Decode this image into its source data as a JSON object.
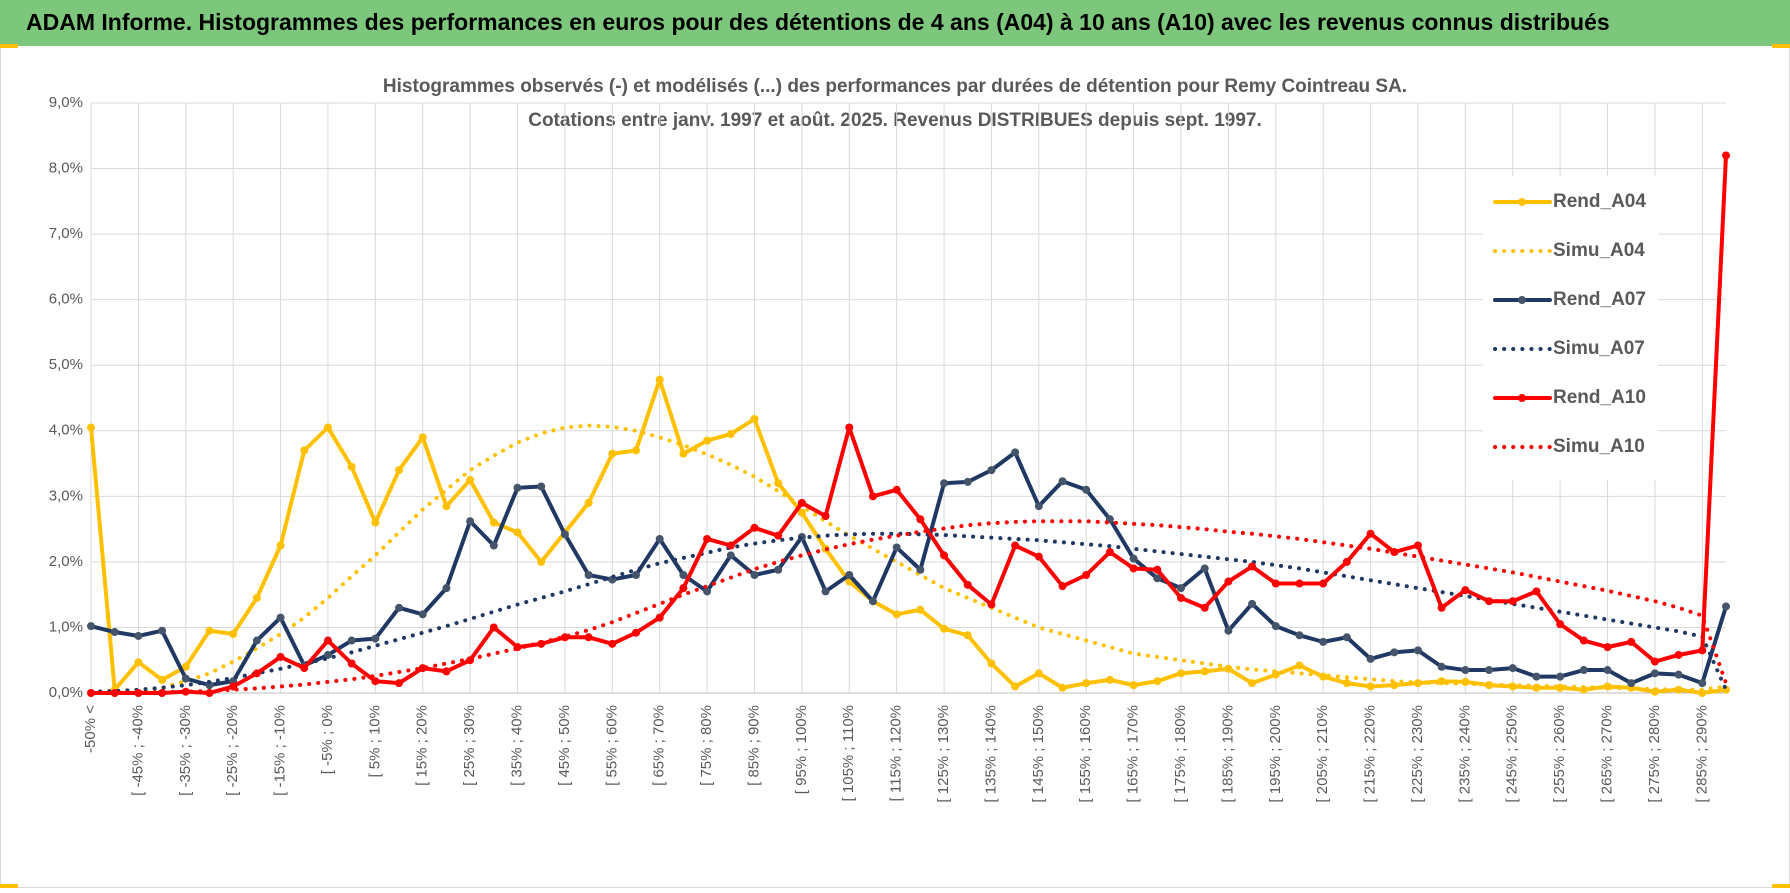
{
  "header": {
    "title": "ADAM Informe. Histogrammes des performances en euros pour des détentions de 4 ans (A04) à 10 ans (A10) avec les revenus connus distribués"
  },
  "chart_data": {
    "type": "line",
    "title": "Histogrammes observés (-) et modélisés (...) des performances par durées de détention pour Remy Cointreau SA.",
    "subtitle": "Cotations entre janv. 1997 et août. 2025. Revenus DISTRIBUES depuis sept. 1997.",
    "categories": [
      "-50% <",
      null,
      "[ -45% ; -40%",
      null,
      "[ -35% ; -30%",
      null,
      "[ -25% ; -20%",
      null,
      "[ -15% ; -10%",
      null,
      "[ -5% ; 0%",
      null,
      "[ 5% ; 10%",
      null,
      "[ 15% ; 20%",
      null,
      "[ 25% ; 30%",
      null,
      "[ 35% ; 40%",
      null,
      "[ 45% ; 50%",
      null,
      "[ 55% ; 60%",
      null,
      "[ 65% ; 70%",
      null,
      "[ 75% ; 80%",
      null,
      "[ 85% ; 90%",
      null,
      "[ 95% ; 100%",
      null,
      "[ 105% ; 110%",
      null,
      "[ 115% ; 120%",
      null,
      "[ 125% ; 130%",
      null,
      "[ 135% ; 140%",
      null,
      "[ 145% ; 150%",
      null,
      "[ 155% ; 160%",
      null,
      "[ 165% ; 170%",
      null,
      "[ 175% ; 180%",
      null,
      "[ 185% ; 190%",
      null,
      "[ 195% ; 200%",
      null,
      "[ 205% ; 210%",
      null,
      "[ 215% ; 220%",
      null,
      "[ 225% ; 230%",
      null,
      "[ 235% ; 240%",
      null,
      "[ 245% ; 250%",
      null,
      "[ 255% ; 260%",
      null,
      "[ 265% ; 270%",
      null,
      "[ 275% ; 280%",
      null,
      "[ 285% ; 290%",
      null
    ],
    "series": [
      {
        "name": "Rend_A04",
        "color": "#ffc000",
        "style": "solid",
        "markers": true,
        "values": [
          4.05,
          0.05,
          0.47,
          0.2,
          0.4,
          0.95,
          0.9,
          1.45,
          2.25,
          3.7,
          4.05,
          3.45,
          2.6,
          3.4,
          3.9,
          2.85,
          3.25,
          2.6,
          2.45,
          2.0,
          2.45,
          2.9,
          3.65,
          3.7,
          4.78,
          3.65,
          3.85,
          3.95,
          4.18,
          3.2,
          2.75,
          2.2,
          1.7,
          1.4,
          1.2,
          1.27,
          0.98,
          0.88,
          0.45,
          0.1,
          0.3,
          0.08,
          0.15,
          0.2,
          0.12,
          0.18,
          0.3,
          0.33,
          0.37,
          0.15,
          0.28,
          0.42,
          0.25,
          0.15,
          0.1,
          0.12,
          0.15,
          0.18,
          0.17,
          0.12,
          0.1,
          0.08,
          0.08,
          0.05,
          0.1,
          0.08,
          0.02,
          0.05,
          0.0,
          0.05
        ]
      },
      {
        "name": "Simu_A04",
        "color": "#ffc000",
        "style": "dotted",
        "markers": false,
        "values": [
          0,
          0,
          0.02,
          0.08,
          0.18,
          0.3,
          0.48,
          0.68,
          0.9,
          1.15,
          1.45,
          1.78,
          2.1,
          2.45,
          2.8,
          3.1,
          3.4,
          3.62,
          3.82,
          3.96,
          4.05,
          4.08,
          4.06,
          4.0,
          3.9,
          3.78,
          3.64,
          3.48,
          3.3,
          3.08,
          2.85,
          2.62,
          2.4,
          2.2,
          2.0,
          1.8,
          1.6,
          1.45,
          1.3,
          1.15,
          1.0,
          0.9,
          0.8,
          0.7,
          0.6,
          0.55,
          0.5,
          0.45,
          0.4,
          0.36,
          0.33,
          0.3,
          0.27,
          0.24,
          0.21,
          0.18,
          0.16,
          0.15,
          0.14,
          0.13,
          0.12,
          0.11,
          0.1,
          0.09,
          0.08,
          0.07,
          0.06,
          0.05,
          0.05,
          0.1
        ]
      },
      {
        "name": "Rend_A07",
        "color": "#1f3864",
        "style": "solid",
        "markers": true,
        "values": [
          1.02,
          0.93,
          0.87,
          0.95,
          0.22,
          0.12,
          0.18,
          0.8,
          1.15,
          0.42,
          0.58,
          0.8,
          0.83,
          1.3,
          1.2,
          1.6,
          2.62,
          2.25,
          3.13,
          3.15,
          2.42,
          1.8,
          1.73,
          1.8,
          2.35,
          1.8,
          1.55,
          2.1,
          1.8,
          1.88,
          2.38,
          1.55,
          1.8,
          1.4,
          2.22,
          1.88,
          3.2,
          3.22,
          3.4,
          3.67,
          2.85,
          3.23,
          3.1,
          2.65,
          2.05,
          1.75,
          1.6,
          1.9,
          0.95,
          1.36,
          1.02,
          0.88,
          0.78,
          0.85,
          0.52,
          0.62,
          0.65,
          0.4,
          0.35,
          0.35,
          0.38,
          0.25,
          0.25,
          0.35,
          0.35,
          0.15,
          0.3,
          0.28,
          0.15,
          1.32
        ]
      },
      {
        "name": "Simu_A07",
        "color": "#1f3864",
        "style": "dotted",
        "markers": false,
        "values": [
          0.02,
          0.03,
          0.05,
          0.08,
          0.12,
          0.17,
          0.23,
          0.3,
          0.37,
          0.45,
          0.53,
          0.62,
          0.72,
          0.82,
          0.92,
          1.02,
          1.13,
          1.24,
          1.35,
          1.45,
          1.55,
          1.66,
          1.77,
          1.88,
          1.98,
          2.06,
          2.14,
          2.22,
          2.28,
          2.33,
          2.37,
          2.4,
          2.42,
          2.43,
          2.43,
          2.42,
          2.41,
          2.39,
          2.37,
          2.35,
          2.33,
          2.3,
          2.27,
          2.24,
          2.2,
          2.16,
          2.12,
          2.08,
          2.04,
          2.0,
          1.95,
          1.9,
          1.84,
          1.78,
          1.72,
          1.66,
          1.6,
          1.54,
          1.48,
          1.42,
          1.36,
          1.3,
          1.24,
          1.18,
          1.12,
          1.06,
          1.0,
          0.94,
          0.86,
          0.05
        ]
      },
      {
        "name": "Rend_A10",
        "color": "#ff0000",
        "style": "solid",
        "markers": true,
        "values": [
          0.0,
          0.0,
          0.0,
          0.0,
          0.02,
          0.0,
          0.1,
          0.3,
          0.55,
          0.38,
          0.8,
          0.45,
          0.18,
          0.15,
          0.38,
          0.33,
          0.5,
          1.0,
          0.7,
          0.75,
          0.85,
          0.85,
          0.75,
          0.92,
          1.15,
          1.6,
          2.35,
          2.25,
          2.52,
          2.4,
          2.9,
          2.7,
          4.05,
          3.0,
          3.1,
          2.65,
          2.1,
          1.65,
          1.35,
          2.25,
          2.08,
          1.63,
          1.8,
          2.15,
          1.9,
          1.88,
          1.45,
          1.3,
          1.7,
          1.93,
          1.67,
          1.67,
          1.67,
          2.0,
          2.43,
          2.15,
          2.25,
          1.3,
          1.57,
          1.4,
          1.4,
          1.55,
          1.05,
          0.8,
          0.7,
          0.78,
          0.48,
          0.58,
          0.65,
          8.2
        ]
      },
      {
        "name": "Simu_A10",
        "color": "#ff0000",
        "style": "dotted",
        "markers": false,
        "values": [
          0,
          0,
          0.01,
          0.01,
          0.02,
          0.03,
          0.05,
          0.07,
          0.1,
          0.13,
          0.17,
          0.21,
          0.26,
          0.32,
          0.38,
          0.45,
          0.52,
          0.6,
          0.68,
          0.77,
          0.86,
          0.96,
          1.08,
          1.22,
          1.36,
          1.5,
          1.63,
          1.76,
          1.89,
          2.0,
          2.1,
          2.19,
          2.27,
          2.34,
          2.4,
          2.46,
          2.51,
          2.56,
          2.59,
          2.61,
          2.62,
          2.62,
          2.62,
          2.6,
          2.58,
          2.56,
          2.53,
          2.5,
          2.46,
          2.43,
          2.39,
          2.35,
          2.3,
          2.25,
          2.2,
          2.14,
          2.08,
          2.02,
          1.96,
          1.9,
          1.84,
          1.77,
          1.7,
          1.63,
          1.56,
          1.48,
          1.4,
          1.3,
          1.18,
          0.15
        ]
      }
    ],
    "ylim": [
      0,
      9
    ],
    "yticks": [
      {
        "value": 0,
        "label": "0,0%"
      },
      {
        "value": 1,
        "label": "1,0%"
      },
      {
        "value": 2,
        "label": "2,0%"
      },
      {
        "value": 3,
        "label": "3,0%"
      },
      {
        "value": 4,
        "label": "4,0%"
      },
      {
        "value": 5,
        "label": "5,0%"
      },
      {
        "value": 6,
        "label": "6,0%"
      },
      {
        "value": 7,
        "label": "7,0%"
      },
      {
        "value": 8,
        "label": "8,0%"
      },
      {
        "value": 9,
        "label": "9,0%"
      }
    ],
    "grid": true,
    "legend": "right"
  }
}
